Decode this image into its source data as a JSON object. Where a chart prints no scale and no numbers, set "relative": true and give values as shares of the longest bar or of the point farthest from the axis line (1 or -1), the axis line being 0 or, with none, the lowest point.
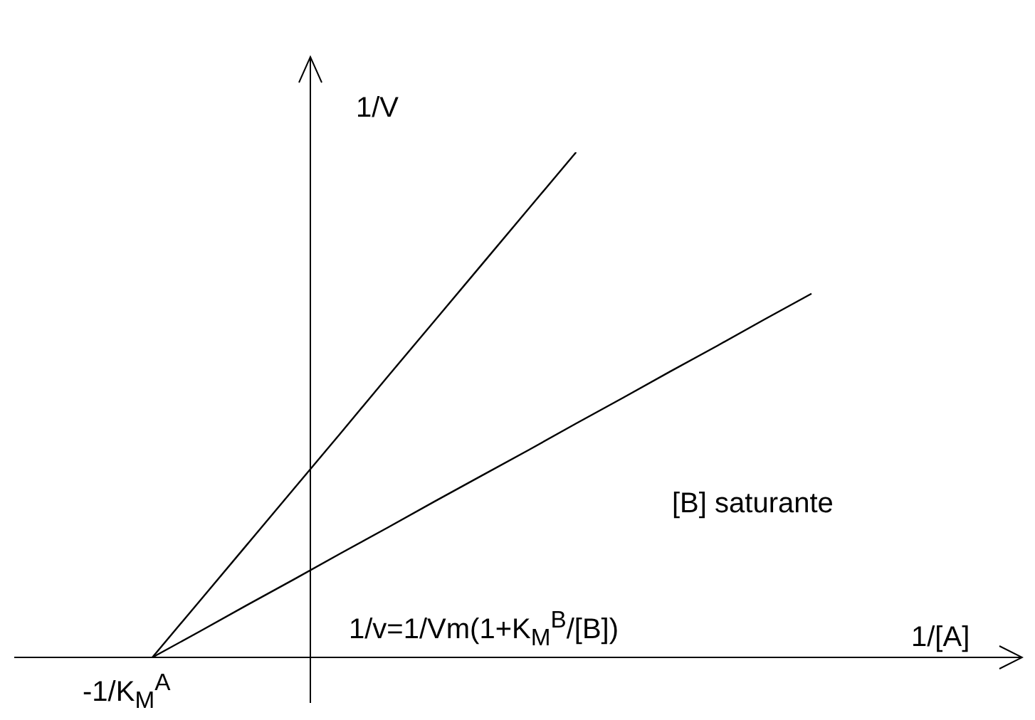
{
  "chart_data": {
    "type": "line",
    "relative": true,
    "xlabel": "1/[A]",
    "ylabel": "1/V",
    "categories": [
      null,
      null,
      null,
      null,
      null,
      null,
      null,
      null,
      null,
      null,
      null,
      null,
      null,
      null,
      null
    ],
    "series": [
      {
        "color": "#000000",
        "values": [
          0,
          0.111,
          0.222,
          0.333,
          0.444,
          0.556,
          0.667,
          0.778,
          0.889,
          1,
          null,
          null,
          null,
          null,
          null
        ]
      },
      {
        "name": "[B] saturante",
        "color": "#000000",
        "values": [
          0,
          0.051,
          0.103,
          0.154,
          0.206,
          0.257,
          0.309,
          0.36,
          0.411,
          0.463,
          0.514,
          0.566,
          0.617,
          0.669,
          0.72
        ]
      }
    ],
    "annotations": [
      "-1/K$_{M}$$^{A}$",
      "1/v=1/Vm(1+K$_{M}$$^{B}$/[B])"
    ],
    "marker": "none",
    "line_style": "solid",
    "grid": false,
    "legend": false
  }
}
